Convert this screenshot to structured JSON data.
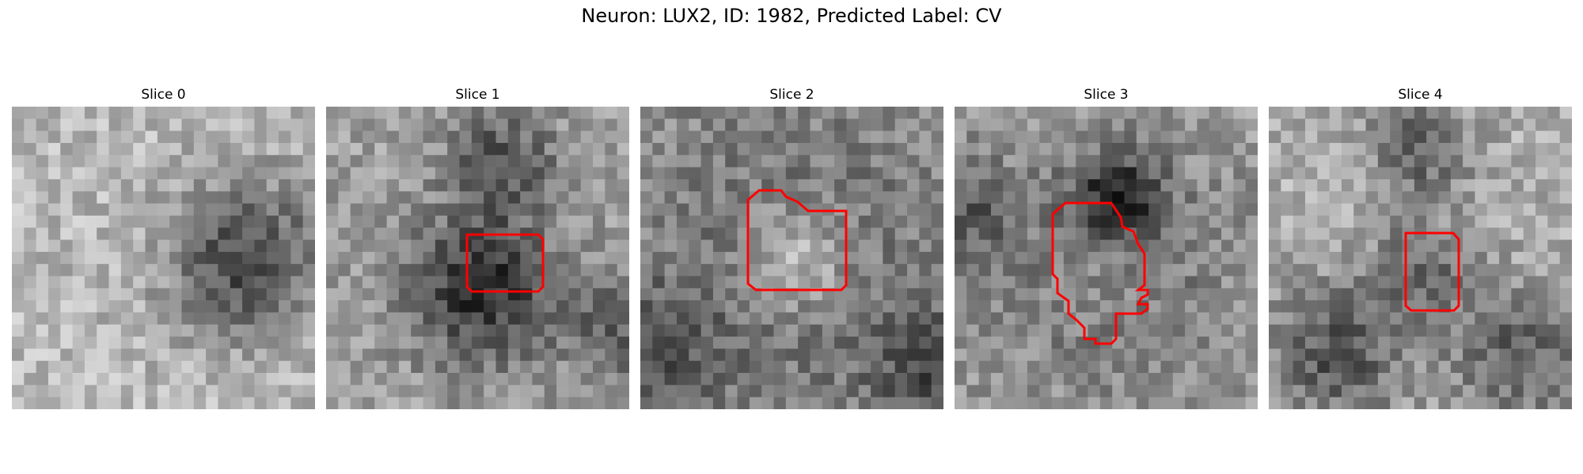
{
  "figure": {
    "title": "Neuron: LUX2, ID: 1982, Predicted Label: CV"
  },
  "panels": [
    {
      "title": "Slice 0",
      "has_contour": false
    },
    {
      "title": "Slice 1",
      "has_contour": true
    },
    {
      "title": "Slice 2",
      "has_contour": true
    },
    {
      "title": "Slice 3",
      "has_contour": true
    },
    {
      "title": "Slice 4",
      "has_contour": true
    }
  ],
  "colors": {
    "contour": "#ff0000",
    "background": "#ffffff"
  }
}
